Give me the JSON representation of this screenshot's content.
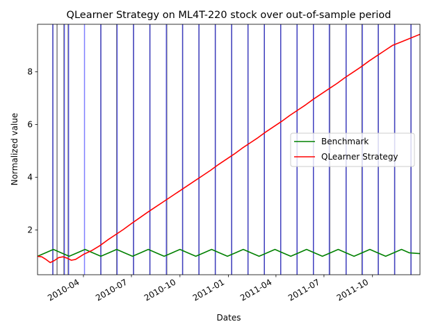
{
  "chart_data": {
    "type": "line",
    "title": "QLearner Strategy on ML4T-220 stock over out-of-sample period",
    "xlabel": "Dates",
    "ylabel": "Normalized value",
    "x_axis": {
      "type": "date",
      "range": [
        "2010-01-04",
        "2011-12-30"
      ],
      "tick_dates": [
        "2010-04-01",
        "2010-07-01",
        "2010-10-01",
        "2011-01-01",
        "2011-04-01",
        "2011-07-01",
        "2011-10-01"
      ],
      "tick_labels": [
        "2010-04",
        "2010-07",
        "2010-10",
        "2011-01",
        "2011-04",
        "2011-07",
        "2011-10"
      ]
    },
    "y_axis": {
      "range": [
        0.3,
        9.8
      ],
      "ticks": [
        2,
        4,
        6,
        8
      ],
      "tick_labels": [
        "2",
        "4",
        "6",
        "8"
      ]
    },
    "legend_position": "center-right",
    "grid": false,
    "series": [
      {
        "name": "Benchmark",
        "color": "#008000",
        "x": [
          "2010-01-04",
          "2010-01-19",
          "2010-02-03",
          "2010-02-18",
          "2010-03-05",
          "2010-03-20",
          "2010-04-04",
          "2010-04-19",
          "2010-05-04",
          "2010-05-19",
          "2010-06-03",
          "2010-06-18",
          "2010-07-03",
          "2010-07-18",
          "2010-08-02",
          "2010-08-17",
          "2010-09-01",
          "2010-09-16",
          "2010-10-01",
          "2010-10-16",
          "2010-10-31",
          "2010-11-15",
          "2010-11-30",
          "2010-12-15",
          "2010-12-30",
          "2011-01-14",
          "2011-01-29",
          "2011-02-13",
          "2011-02-28",
          "2011-03-15",
          "2011-03-30",
          "2011-04-14",
          "2011-04-29",
          "2011-05-14",
          "2011-05-29",
          "2011-06-13",
          "2011-06-28",
          "2011-07-13",
          "2011-07-28",
          "2011-08-12",
          "2011-08-27",
          "2011-09-11",
          "2011-09-26",
          "2011-10-11",
          "2011-10-26",
          "2011-11-10",
          "2011-11-25",
          "2011-12-10",
          "2011-12-30"
        ],
        "y": [
          1.0,
          1.13,
          1.26,
          1.13,
          1.0,
          1.13,
          1.26,
          1.13,
          1.0,
          1.13,
          1.26,
          1.13,
          1.0,
          1.13,
          1.26,
          1.13,
          1.0,
          1.13,
          1.26,
          1.13,
          1.0,
          1.13,
          1.26,
          1.13,
          1.0,
          1.13,
          1.26,
          1.13,
          1.0,
          1.13,
          1.26,
          1.13,
          1.0,
          1.13,
          1.26,
          1.13,
          1.0,
          1.13,
          1.26,
          1.13,
          1.0,
          1.13,
          1.26,
          1.13,
          1.0,
          1.13,
          1.26,
          1.13,
          1.1
        ]
      },
      {
        "name": "QLearner Strategy",
        "color": "#ff0000",
        "x": [
          "2010-01-04",
          "2010-01-12",
          "2010-01-20",
          "2010-01-28",
          "2010-02-05",
          "2010-02-13",
          "2010-02-21",
          "2010-03-01",
          "2010-03-09",
          "2010-03-17",
          "2010-03-25",
          "2010-04-02",
          "2010-04-17",
          "2010-05-02",
          "2010-05-17",
          "2010-06-01",
          "2010-06-16",
          "2010-07-01",
          "2010-07-16",
          "2010-07-31",
          "2010-08-15",
          "2010-08-30",
          "2010-09-14",
          "2010-09-29",
          "2010-10-14",
          "2010-10-29",
          "2010-11-13",
          "2010-11-28",
          "2010-12-13",
          "2010-12-28",
          "2011-01-12",
          "2011-01-27",
          "2011-02-11",
          "2011-02-26",
          "2011-03-13",
          "2011-03-28",
          "2011-04-12",
          "2011-04-27",
          "2011-05-12",
          "2011-05-27",
          "2011-06-11",
          "2011-06-26",
          "2011-07-11",
          "2011-07-26",
          "2011-08-10",
          "2011-08-25",
          "2011-09-09",
          "2011-09-24",
          "2011-10-09",
          "2011-10-24",
          "2011-11-08",
          "2011-11-23",
          "2011-12-08",
          "2011-12-30"
        ],
        "y": [
          1.0,
          0.98,
          0.88,
          0.76,
          0.84,
          0.95,
          0.98,
          0.93,
          0.85,
          0.88,
          0.98,
          1.08,
          1.22,
          1.4,
          1.62,
          1.82,
          2.02,
          2.24,
          2.45,
          2.66,
          2.86,
          3.06,
          3.26,
          3.46,
          3.66,
          3.86,
          4.06,
          4.26,
          4.48,
          4.68,
          4.88,
          5.1,
          5.3,
          5.5,
          5.72,
          5.92,
          6.12,
          6.34,
          6.54,
          6.74,
          6.96,
          7.16,
          7.36,
          7.56,
          7.78,
          7.98,
          8.18,
          8.4,
          8.6,
          8.8,
          9.0,
          9.12,
          9.24,
          9.42
        ]
      }
    ],
    "vertical_lines": {
      "black": {
        "color": "#000000",
        "dates": [
          "2010-02-02",
          "2010-02-10",
          "2010-02-23",
          "2010-03-03",
          "2010-05-04",
          "2010-06-03",
          "2010-07-05",
          "2010-08-05",
          "2010-09-06",
          "2010-10-06",
          "2010-11-06",
          "2010-12-07",
          "2011-01-07",
          "2011-02-07",
          "2011-03-10",
          "2011-04-10",
          "2011-05-11",
          "2011-06-11",
          "2011-07-12",
          "2011-08-12",
          "2011-09-11",
          "2011-10-12",
          "2011-11-12",
          "2011-12-13"
        ]
      },
      "blue": {
        "color": "#0000ff",
        "dates": [
          "2010-02-02",
          "2010-02-24",
          "2010-03-04",
          "2010-04-03",
          "2010-05-04",
          "2010-06-04",
          "2010-07-05",
          "2010-08-05",
          "2010-09-05",
          "2010-10-06",
          "2010-11-06",
          "2010-12-07",
          "2011-01-07",
          "2011-02-07",
          "2011-03-10",
          "2011-04-10",
          "2011-05-11",
          "2011-06-11",
          "2011-07-11",
          "2011-08-12",
          "2011-09-12",
          "2011-10-12",
          "2011-11-12",
          "2011-12-13"
        ]
      }
    }
  }
}
